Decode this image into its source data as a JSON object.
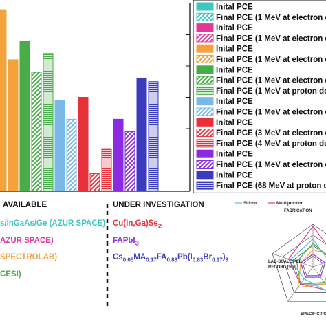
{
  "chart_data": {
    "type": "bar",
    "ylim": [
      0,
      30
    ],
    "bars": [
      {
        "value": 29.0,
        "color": "#f4a23c",
        "fill": "solid"
      },
      {
        "value": 21.0,
        "color": "#f4a23c",
        "fill": "solid"
      },
      {
        "value": 24.0,
        "color": "#48ad48",
        "fill": "solid"
      },
      {
        "value": 19.0,
        "color": "#48ad48",
        "fill": "diag"
      },
      {
        "value": 22.0,
        "color": "#48ad48",
        "fill": "horiz"
      },
      {
        "value": 14.5,
        "color": "#7ab8e8",
        "fill": "solid"
      },
      {
        "value": 11.5,
        "color": "#7ab8e8",
        "fill": "diag"
      },
      {
        "value": 15.0,
        "color": "#e8303a",
        "fill": "solid"
      },
      {
        "value": 2.8,
        "color": "#e8303a",
        "fill": "diag"
      },
      {
        "value": 6.8,
        "color": "#e8303a",
        "fill": "horiz"
      },
      {
        "value": 11.5,
        "color": "#8a2be2",
        "fill": "solid"
      },
      {
        "value": 9.5,
        "color": "#8a2be2",
        "fill": "diag"
      },
      {
        "value": 18.0,
        "color": "#3b3bbf",
        "fill": "solid"
      },
      {
        "value": 17.5,
        "color": "#3b3bbf",
        "fill": "horiz"
      }
    ],
    "legend": [
      {
        "label": "Inital PCE",
        "color": "#3ec7c2",
        "fill": "solid"
      },
      {
        "label": "Final PCE (1 MeV at electron d",
        "color": "#3ec7c2",
        "fill": "diag"
      },
      {
        "label": "Inital PCE",
        "color": "#e3399b",
        "fill": "solid"
      },
      {
        "label": "Final PCE (1 MeV at electron d",
        "color": "#e3399b",
        "fill": "diag"
      },
      {
        "label": "Inital PCE",
        "color": "#f4a23c",
        "fill": "solid"
      },
      {
        "label": "Final PCE (1 MeV at electron d",
        "color": "#f4a23c",
        "fill": "diag"
      },
      {
        "label": "Inital PCE",
        "color": "#48ad48",
        "fill": "solid"
      },
      {
        "label": "Final PCE (1 MeV at electron d",
        "color": "#48ad48",
        "fill": "diag"
      },
      {
        "label": "Final PCE (1 MeV at proton do",
        "color": "#48ad48",
        "fill": "horiz"
      },
      {
        "label": "Inital PCE",
        "color": "#7ab8e8",
        "fill": "solid"
      },
      {
        "label": "Final PCE (1 MeV at electron d",
        "color": "#7ab8e8",
        "fill": "diag"
      },
      {
        "label": "Inital PCE",
        "color": "#e8303a",
        "fill": "solid"
      },
      {
        "label": "Final PCE (3 MeV at electron d",
        "color": "#e8303a",
        "fill": "diag"
      },
      {
        "label": "Final PCE (4 MeV at proton do",
        "color": "#e8303a",
        "fill": "horiz"
      },
      {
        "label": "Inital PCE",
        "color": "#8a2be2",
        "fill": "solid"
      },
      {
        "label": "Final PCE (1 MeV at electron d",
        "color": "#8a2be2",
        "fill": "diag"
      },
      {
        "label": "Inital PCE",
        "color": "#3b3bbf",
        "fill": "solid"
      },
      {
        "label": "Final PCE (68 MeV at proton do",
        "color": "#3b3bbf",
        "fill": "horiz"
      }
    ],
    "radar": {
      "legend": [
        "Silicon",
        "Multi-junction"
      ],
      "legend_colors": [
        "#48c1e8",
        "#e3399b"
      ],
      "axis_labels": [
        "FABRICATION",
        "LAB-SCALE PCE RECORD (%)",
        "SPECIFIC PO"
      ]
    }
  },
  "sections": {
    "available_heading": "AVAILABLE",
    "available_items": [
      {
        "text": "s/InGaAs/Ge (AZUR SPACE)",
        "color": "#3ec7c2"
      },
      {
        "text": "AZUR SPACE)",
        "color": "#e3399b"
      },
      {
        "text": "SPECTROLAB)",
        "color": "#f4a23c"
      },
      {
        "text": "CESI)",
        "color": "#48ad48"
      }
    ],
    "investigation_heading": "UNDER INVESTIGATION",
    "investigation_items": [
      {
        "text": "Cu(In,Ga)Se",
        "sub": "2",
        "color": "#e8303a"
      },
      {
        "text": "FAPbI",
        "sub": "3",
        "color": "#8a2be2"
      }
    ],
    "formula": [
      {
        "t": "Cs",
        "s": false
      },
      {
        "t": "0.05",
        "s": true
      },
      {
        "t": "MA",
        "s": false
      },
      {
        "t": "0.17",
        "s": true
      },
      {
        "t": "FA",
        "s": false
      },
      {
        "t": "0.83",
        "s": true
      },
      {
        "t": "Pb(I",
        "s": false
      },
      {
        "t": "0.83",
        "s": true
      },
      {
        "t": "Br",
        "s": false
      },
      {
        "t": "0.17",
        "s": true
      },
      {
        "t": ")",
        "s": false
      },
      {
        "t": "3",
        "s": true
      }
    ],
    "formula_color": "#3b3bbf"
  }
}
